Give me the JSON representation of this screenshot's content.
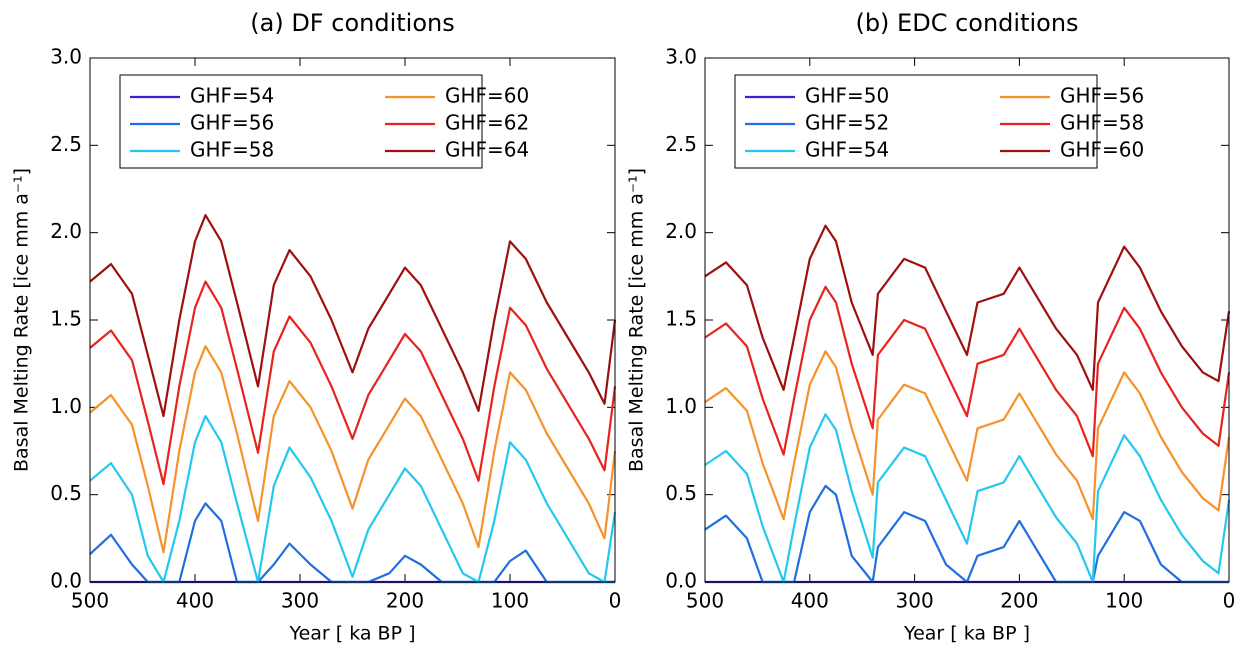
{
  "chart_data": [
    {
      "type": "line",
      "title": "(a) DF conditions",
      "xlabel": "Year [ ka BP ]",
      "ylabel": "Basal Melting Rate [ice mm a⁻¹]",
      "xlim": [
        500,
        0
      ],
      "ylim": [
        0,
        3
      ],
      "xticks": [
        500,
        400,
        300,
        200,
        100,
        0
      ],
      "yticks": [
        {
          "value": 0,
          "label": "0.0"
        },
        0.5,
        {
          "value": 1,
          "label": "1.0"
        },
        1.5,
        {
          "value": 2,
          "label": "2.0"
        },
        2.5,
        {
          "value": 3,
          "label": "3.0"
        }
      ],
      "grid": false,
      "legend": "upper left",
      "x": [
        500,
        480,
        460,
        445,
        430,
        415,
        400,
        390,
        375,
        360,
        340,
        325,
        310,
        290,
        270,
        250,
        235,
        215,
        200,
        185,
        165,
        145,
        130,
        115,
        100,
        85,
        65,
        45,
        25,
        10,
        0
      ],
      "series": [
        {
          "name": "GHF=54",
          "color": "#3a22d0",
          "values": [
            0,
            0,
            0,
            0,
            0,
            0,
            0,
            0,
            0,
            0,
            0,
            0,
            0,
            0,
            0,
            0,
            0,
            0,
            0,
            0,
            0,
            0,
            0,
            0,
            0,
            0,
            0,
            0,
            0,
            0,
            0
          ]
        },
        {
          "name": "GHF=56",
          "color": "#1f6fe0",
          "values": [
            0.16,
            0.27,
            0.1,
            0,
            0,
            0,
            0.35,
            0.45,
            0.35,
            0,
            0,
            0.1,
            0.22,
            0.1,
            0,
            0,
            0,
            0.05,
            0.15,
            0.1,
            0,
            0,
            0,
            0,
            0.12,
            0.18,
            0,
            0,
            0,
            0,
            0
          ]
        },
        {
          "name": "GHF=58",
          "color": "#22c8ef",
          "values": [
            0.58,
            0.68,
            0.5,
            0.15,
            0,
            0.35,
            0.8,
            0.95,
            0.8,
            0.45,
            0,
            0.55,
            0.77,
            0.6,
            0.35,
            0.03,
            0.3,
            0.5,
            0.65,
            0.55,
            0.3,
            0.05,
            0,
            0.35,
            0.8,
            0.7,
            0.45,
            0.25,
            0.05,
            0,
            0.4
          ]
        },
        {
          "name": "GHF=60",
          "color": "#f5922b",
          "values": [
            0.97,
            1.07,
            0.9,
            0.55,
            0.17,
            0.75,
            1.2,
            1.35,
            1.2,
            0.85,
            0.35,
            0.95,
            1.15,
            1.0,
            0.75,
            0.42,
            0.7,
            0.9,
            1.05,
            0.95,
            0.7,
            0.45,
            0.2,
            0.75,
            1.2,
            1.1,
            0.85,
            0.65,
            0.45,
            0.25,
            0.75
          ]
        },
        {
          "name": "GHF=62",
          "color": "#e8231e",
          "values": [
            1.34,
            1.44,
            1.27,
            0.92,
            0.56,
            1.12,
            1.57,
            1.72,
            1.57,
            1.22,
            0.74,
            1.32,
            1.52,
            1.37,
            1.12,
            0.82,
            1.07,
            1.27,
            1.42,
            1.32,
            1.07,
            0.82,
            0.58,
            1.12,
            1.57,
            1.47,
            1.22,
            1.02,
            0.82,
            0.64,
            1.12
          ]
        },
        {
          "name": "GHF=64",
          "color": "#9e1010",
          "values": [
            1.72,
            1.82,
            1.65,
            1.3,
            0.95,
            1.5,
            1.95,
            2.1,
            1.95,
            1.6,
            1.12,
            1.7,
            1.9,
            1.75,
            1.5,
            1.2,
            1.45,
            1.65,
            1.8,
            1.7,
            1.45,
            1.2,
            0.98,
            1.5,
            1.95,
            1.85,
            1.6,
            1.4,
            1.2,
            1.02,
            1.5
          ]
        }
      ]
    },
    {
      "type": "line",
      "title": "(b) EDC conditions",
      "xlabel": "Year [ ka BP ]",
      "ylabel": "Basal Melting Rate [ice mm a⁻¹]",
      "xlim": [
        500,
        0
      ],
      "ylim": [
        0,
        3
      ],
      "xticks": [
        500,
        400,
        300,
        200,
        100,
        0
      ],
      "yticks": [
        {
          "value": 0,
          "label": "0.0"
        },
        0.5,
        {
          "value": 1,
          "label": "1.0"
        },
        1.5,
        {
          "value": 2,
          "label": "2.0"
        },
        2.5,
        {
          "value": 3,
          "label": "3.0"
        }
      ],
      "grid": false,
      "legend": "upper left",
      "x": [
        500,
        480,
        460,
        445,
        425,
        415,
        400,
        385,
        375,
        360,
        340,
        335,
        310,
        290,
        270,
        250,
        240,
        215,
        200,
        185,
        165,
        145,
        130,
        125,
        100,
        85,
        65,
        45,
        25,
        10,
        0
      ],
      "series": [
        {
          "name": "GHF=50",
          "color": "#3a22d0",
          "values": [
            0,
            0,
            0,
            0,
            0,
            0,
            0,
            0,
            0,
            0,
            0,
            0,
            0,
            0,
            0,
            0,
            0,
            0,
            0,
            0,
            0,
            0,
            0,
            0,
            0,
            0,
            0,
            0,
            0,
            0,
            0
          ]
        },
        {
          "name": "GHF=52",
          "color": "#1f6fe0",
          "values": [
            0.3,
            0.38,
            0.25,
            0,
            0,
            0,
            0.4,
            0.55,
            0.5,
            0.15,
            0,
            0.2,
            0.4,
            0.35,
            0.1,
            0,
            0.15,
            0.2,
            0.35,
            0.2,
            0,
            0,
            0,
            0.15,
            0.4,
            0.35,
            0.1,
            0,
            0,
            0,
            0
          ]
        },
        {
          "name": "GHF=54",
          "color": "#22c8ef",
          "values": [
            0.67,
            0.75,
            0.62,
            0.32,
            0,
            0.32,
            0.77,
            0.96,
            0.87,
            0.52,
            0.14,
            0.57,
            0.77,
            0.72,
            0.47,
            0.22,
            0.52,
            0.57,
            0.72,
            0.57,
            0.37,
            0.22,
            0,
            0.52,
            0.84,
            0.72,
            0.47,
            0.27,
            0.12,
            0.05,
            0.47
          ]
        },
        {
          "name": "GHF=56",
          "color": "#f5922b",
          "values": [
            1.03,
            1.11,
            0.98,
            0.68,
            0.36,
            0.68,
            1.13,
            1.32,
            1.23,
            0.88,
            0.5,
            0.93,
            1.13,
            1.08,
            0.83,
            0.58,
            0.88,
            0.93,
            1.08,
            0.93,
            0.73,
            0.58,
            0.36,
            0.88,
            1.2,
            1.08,
            0.83,
            0.63,
            0.48,
            0.41,
            0.83
          ]
        },
        {
          "name": "GHF=58",
          "color": "#e8231e",
          "values": [
            1.4,
            1.48,
            1.35,
            1.05,
            0.73,
            1.05,
            1.5,
            1.69,
            1.6,
            1.25,
            0.88,
            1.3,
            1.5,
            1.45,
            1.2,
            0.95,
            1.25,
            1.3,
            1.45,
            1.3,
            1.1,
            0.95,
            0.72,
            1.25,
            1.57,
            1.45,
            1.2,
            1.0,
            0.85,
            0.78,
            1.2
          ]
        },
        {
          "name": "GHF=60",
          "color": "#9e1010",
          "values": [
            1.75,
            1.83,
            1.7,
            1.4,
            1.1,
            1.4,
            1.85,
            2.04,
            1.95,
            1.6,
            1.3,
            1.65,
            1.85,
            1.8,
            1.55,
            1.3,
            1.6,
            1.65,
            1.8,
            1.65,
            1.45,
            1.3,
            1.1,
            1.6,
            1.92,
            1.8,
            1.55,
            1.35,
            1.2,
            1.15,
            1.55
          ]
        }
      ]
    }
  ]
}
